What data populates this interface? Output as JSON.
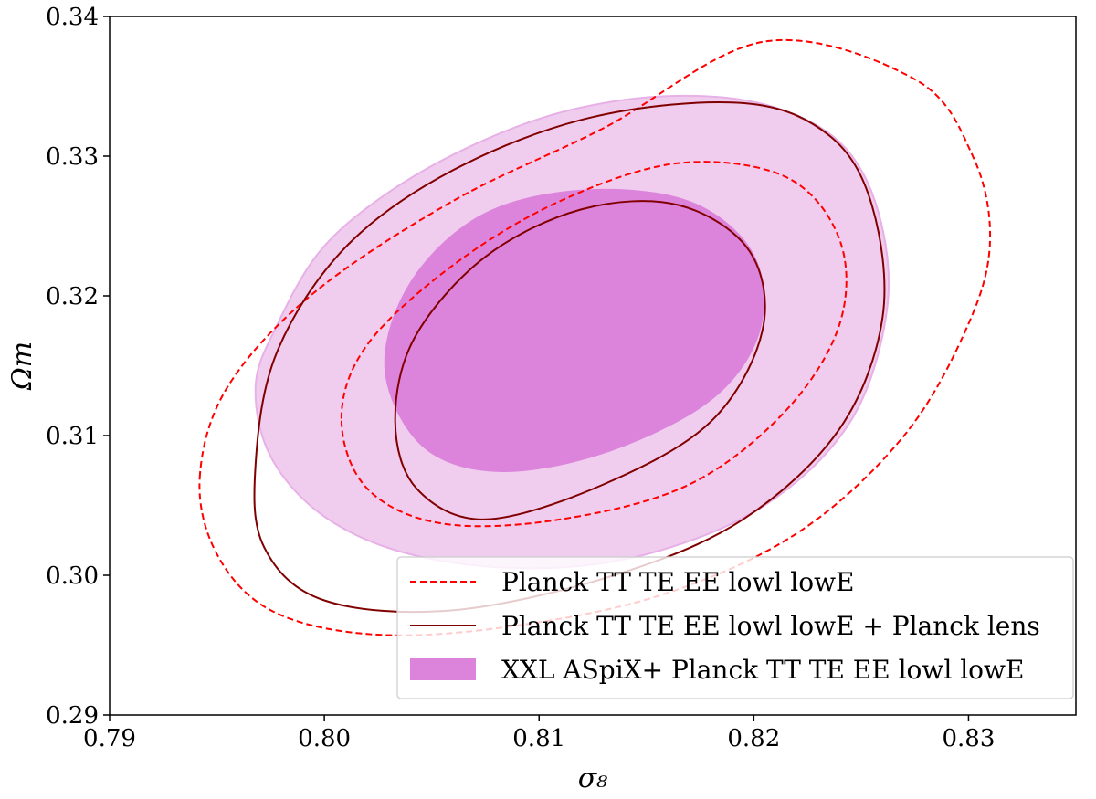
{
  "chart_data": {
    "type": "contour",
    "title": "",
    "xlabel": "σ₈",
    "ylabel": "Ωm",
    "xlim": [
      0.79,
      0.835
    ],
    "ylim": [
      0.29,
      0.34
    ],
    "xticks": [
      0.79,
      0.8,
      0.81,
      0.82,
      0.83
    ],
    "yticks": [
      0.29,
      0.3,
      0.31,
      0.32,
      0.33,
      0.34
    ],
    "xtick_labels": [
      "0.79",
      "0.80",
      "0.81",
      "0.82",
      "0.83"
    ],
    "ytick_labels": [
      "0.29",
      "0.30",
      "0.31",
      "0.32",
      "0.33",
      "0.34"
    ],
    "grid": false,
    "legend_position": "lower-right",
    "series": [
      {
        "name": "XXL ASpiX+ Planck TT TE EE lowl lowE",
        "style": "filled",
        "color_outer": "#f0cdee",
        "color_outer_edge": "#e7b0e6",
        "color_inner": "#dc84db",
        "contours": [
          {
            "level": "2sigma",
            "points": [
              [
                0.7968,
                0.3136
              ],
              [
                0.7978,
                0.3179
              ],
              [
                0.7998,
                0.3232
              ],
              [
                0.8028,
                0.3272
              ],
              [
                0.8068,
                0.3307
              ],
              [
                0.8112,
                0.3332
              ],
              [
                0.816,
                0.3343
              ],
              [
                0.8205,
                0.3337
              ],
              [
                0.824,
                0.331
              ],
              [
                0.8258,
                0.326
              ],
              [
                0.8262,
                0.319
              ],
              [
                0.8245,
                0.311
              ],
              [
                0.8205,
                0.305
              ],
              [
                0.815,
                0.3015
              ],
              [
                0.8095,
                0.3005
              ],
              [
                0.804,
                0.3015
              ],
              [
                0.8,
                0.3042
              ],
              [
                0.7975,
                0.3085
              ]
            ]
          },
          {
            "level": "1sigma",
            "points": [
              [
                0.8028,
                0.3148
              ],
              [
                0.804,
                0.321
              ],
              [
                0.8073,
                0.3258
              ],
              [
                0.812,
                0.3276
              ],
              [
                0.817,
                0.3268
              ],
              [
                0.82,
                0.323
              ],
              [
                0.8203,
                0.3175
              ],
              [
                0.818,
                0.3125
              ],
              [
                0.813,
                0.3087
              ],
              [
                0.808,
                0.3074
              ],
              [
                0.8045,
                0.3093
              ]
            ]
          }
        ]
      },
      {
        "name": "Planck TT TE EE lowl lowE",
        "style": "dashed",
        "color": "#ff0000",
        "contours": [
          {
            "level": "2sigma",
            "points": [
              [
                0.7942,
                0.307
              ],
              [
                0.7955,
                0.3135
              ],
              [
                0.7995,
                0.3202
              ],
              [
                0.806,
                0.3268
              ],
              [
                0.813,
                0.332
              ],
              [
                0.8205,
                0.3382
              ],
              [
                0.8275,
                0.3355
              ],
              [
                0.8302,
                0.33
              ],
              [
                0.831,
                0.324
              ],
              [
                0.83,
                0.318
              ],
              [
                0.827,
                0.31
              ],
              [
                0.822,
                0.303
              ],
              [
                0.8155,
                0.2985
              ],
              [
                0.808,
                0.2962
              ],
              [
                0.802,
                0.2958
              ],
              [
                0.7975,
                0.2975
              ],
              [
                0.795,
                0.3015
              ]
            ]
          },
          {
            "level": "1sigma",
            "points": [
              [
                0.8008,
                0.3112
              ],
              [
                0.802,
                0.3165
              ],
              [
                0.806,
                0.3222
              ],
              [
                0.811,
                0.3268
              ],
              [
                0.8165,
                0.3295
              ],
              [
                0.8215,
                0.3285
              ],
              [
                0.824,
                0.324
              ],
              [
                0.824,
                0.318
              ],
              [
                0.8215,
                0.3118
              ],
              [
                0.817,
                0.3065
              ],
              [
                0.811,
                0.304
              ],
              [
                0.8055,
                0.3037
              ],
              [
                0.802,
                0.3062
              ]
            ]
          }
        ]
      },
      {
        "name": "Planck TT TE EE lowl lowE + Planck lens",
        "style": "solid",
        "color": "#800000",
        "contours": [
          {
            "level": "2sigma",
            "points": [
              [
                0.7968,
                0.308
              ],
              [
                0.7978,
                0.316
              ],
              [
                0.801,
                0.3235
              ],
              [
                0.806,
                0.329
              ],
              [
                0.8125,
                0.3328
              ],
              [
                0.8195,
                0.3338
              ],
              [
                0.8235,
                0.3315
              ],
              [
                0.8255,
                0.3265
              ],
              [
                0.826,
                0.3185
              ],
              [
                0.824,
                0.3105
              ],
              [
                0.8195,
                0.304
              ],
              [
                0.8135,
                0.3
              ],
              [
                0.806,
                0.2975
              ],
              [
                0.8,
                0.2982
              ],
              [
                0.7972,
                0.302
              ]
            ]
          },
          {
            "level": "1sigma",
            "points": [
              [
                0.8033,
                0.311
              ],
              [
                0.8042,
                0.317
              ],
              [
                0.8075,
                0.3228
              ],
              [
                0.812,
                0.3262
              ],
              [
                0.8165,
                0.3265
              ],
              [
                0.8198,
                0.3232
              ],
              [
                0.8204,
                0.3175
              ],
              [
                0.818,
                0.311
              ],
              [
                0.813,
                0.3065
              ],
              [
                0.8075,
                0.304
              ],
              [
                0.8043,
                0.3062
              ]
            ]
          }
        ]
      }
    ],
    "legend": [
      {
        "label": "Planck TT TE EE lowl lowE",
        "style": "dashed",
        "color": "#ff0000"
      },
      {
        "label": "Planck TT TE EE lowl lowE + Planck lens",
        "style": "solid",
        "color": "#800000"
      },
      {
        "label": "XXL ASpiX+ Planck TT TE EE lowl lowE",
        "style": "filled",
        "color": "#dc84db"
      }
    ]
  }
}
